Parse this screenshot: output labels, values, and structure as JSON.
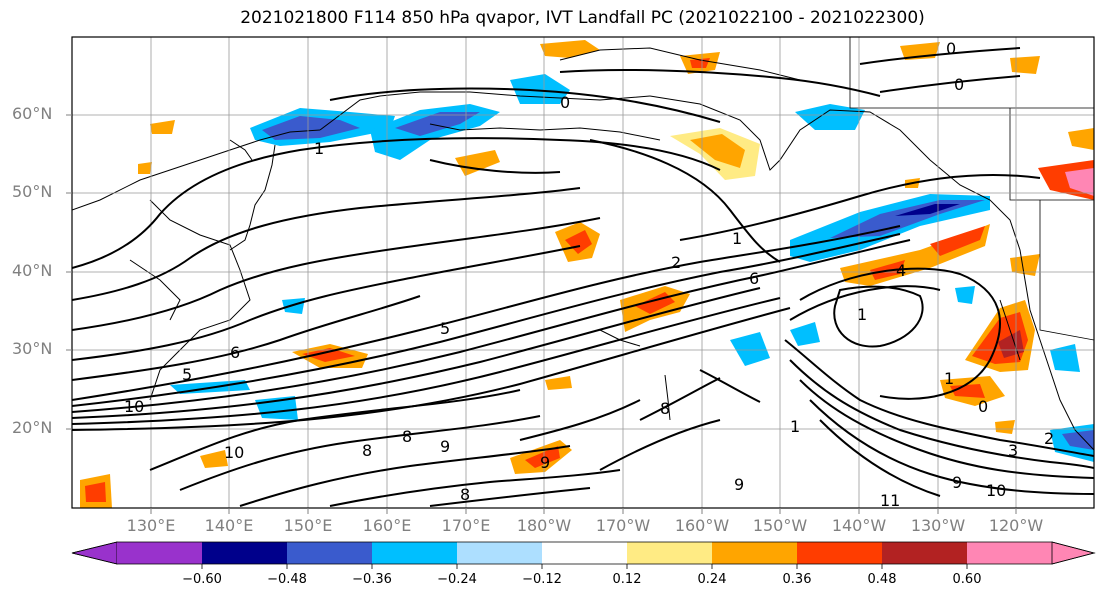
{
  "title": "2021021800 F114 850 hPa qvapor, IVT Landfall PC (2021022100 - 2021022300)",
  "lat_labels": [
    "60°N",
    "50°N",
    "40°N",
    "30°N",
    "20°N"
  ],
  "lon_labels": [
    "130°E",
    "140°E",
    "150°E",
    "160°E",
    "170°E",
    "180°W",
    "170°W",
    "160°W",
    "150°W",
    "140°W",
    "130°W",
    "120°W"
  ],
  "colorbar": {
    "colors": [
      "#9932CC",
      "#00008B",
      "#3A5BCD",
      "#00BFFF",
      "#ADDFFF",
      "#FFFFFF",
      "#FFEB84",
      "#FFA500",
      "#FF3D00",
      "#B22222",
      "#FF86B4"
    ],
    "ticks": [
      "−0.60",
      "−0.48",
      "−0.36",
      "−0.24",
      "−0.12",
      "0.12",
      "0.24",
      "0.36",
      "0.48",
      "0.60"
    ]
  },
  "contour_labels": [
    "0",
    "0",
    "0",
    "1",
    "1",
    "2",
    "6",
    "4",
    "1",
    "5",
    "5",
    "6",
    "10",
    "8",
    "8",
    "9",
    "10",
    "9",
    "8",
    "11",
    "9",
    "10",
    "3",
    "2",
    "1",
    "0",
    "8",
    "9",
    "1"
  ]
}
